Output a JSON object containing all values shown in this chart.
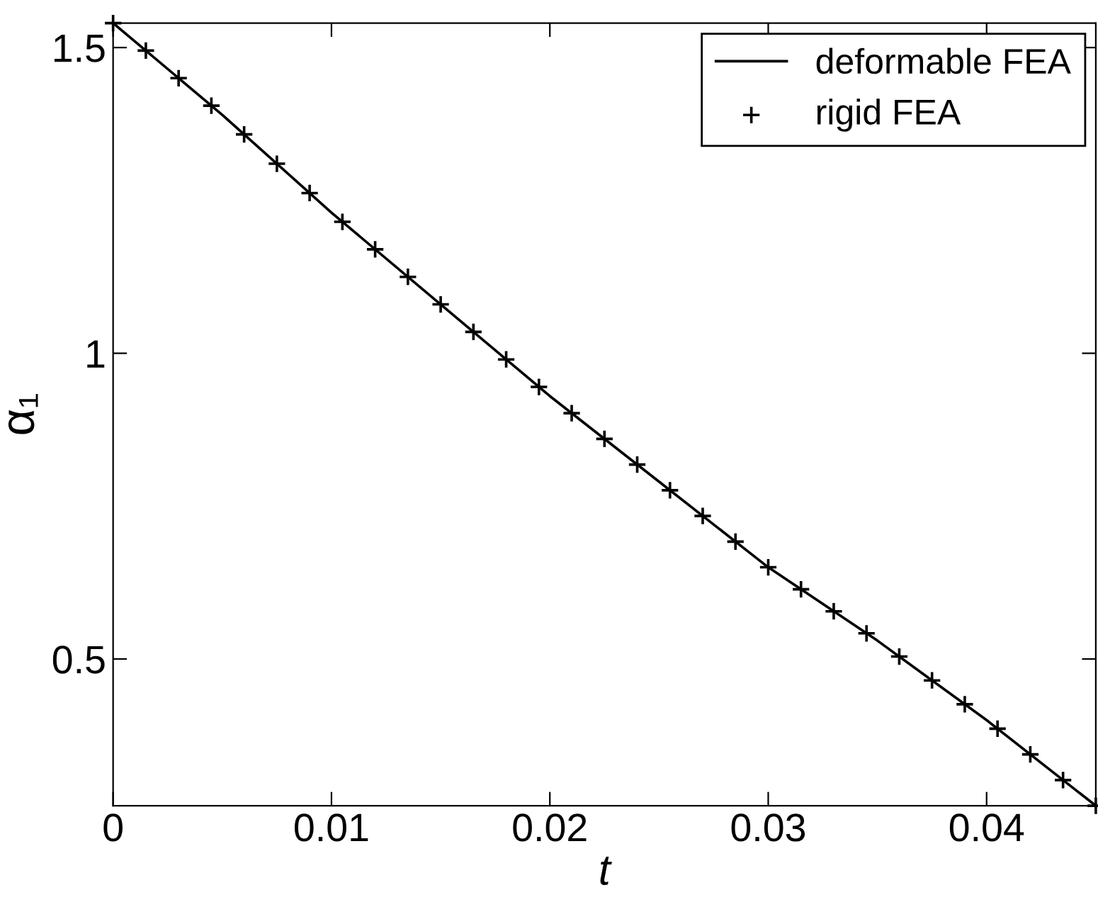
{
  "chart_data": {
    "type": "line",
    "xlabel": "t",
    "ylabel": "α₁",
    "xlim": [
      0,
      0.045
    ],
    "ylim": [
      0.26,
      1.54
    ],
    "xticks": [
      0,
      0.01,
      0.02,
      0.03,
      0.04
    ],
    "yticks": [
      0.5,
      1,
      1.5
    ],
    "grid": false,
    "legend": "top right",
    "series": [
      {
        "name": "deformable FEA",
        "color": "#000000",
        "marker": "none",
        "line_style": "solid",
        "x": [
          0,
          0.005,
          0.01,
          0.015,
          0.02,
          0.025,
          0.03,
          0.035,
          0.04,
          0.045
        ],
        "values": [
          1.54,
          1.39,
          1.23,
          1.08,
          0.93,
          0.79,
          0.65,
          0.53,
          0.4,
          0.26
        ]
      },
      {
        "name": "rigid FEA",
        "type": "scatter",
        "color": "#000000",
        "marker": "cross",
        "x": [
          0,
          0.0015,
          0.003,
          0.0045,
          0.006,
          0.0075,
          0.009,
          0.0105,
          0.012,
          0.0135,
          0.015,
          0.0165,
          0.018,
          0.0195,
          0.021,
          0.0225,
          0.024,
          0.0255,
          0.027,
          0.0285,
          0.03,
          0.0315,
          0.033,
          0.0345,
          0.036,
          0.0375,
          0.039,
          0.0405,
          0.042,
          0.0435,
          0.045
        ],
        "values": [
          1.54,
          1.495,
          1.45,
          1.405,
          1.358,
          1.31,
          1.262,
          1.215,
          1.17,
          1.125,
          1.08,
          1.035,
          0.99,
          0.945,
          0.902,
          0.86,
          0.818,
          0.776,
          0.734,
          0.692,
          0.65,
          0.614,
          0.578,
          0.542,
          0.504,
          0.465,
          0.426,
          0.386,
          0.344,
          0.302,
          0.26
        ]
      }
    ]
  }
}
